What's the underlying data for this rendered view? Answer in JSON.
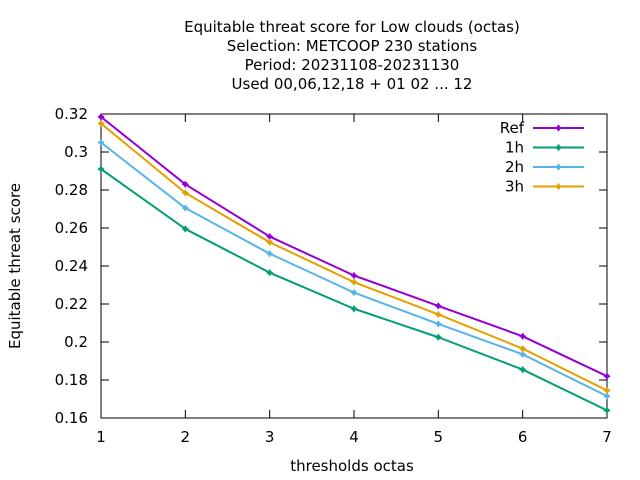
{
  "chart_data": {
    "type": "line",
    "title_lines": [
      "Equitable threat score  for Low clouds (octas)",
      "Selection: METCOOP    230 stations",
      "Period: 20231108-20231130",
      "Used  00,06,12,18 + 01 02 ... 12"
    ],
    "xlabel": "thresholds octas",
    "ylabel": "Equitable threat score",
    "x": [
      1,
      2,
      3,
      4,
      5,
      6,
      7
    ],
    "xlim": [
      1,
      7
    ],
    "ylim": [
      0.16,
      0.32
    ],
    "xticks": [
      "1",
      "2",
      "3",
      "4",
      "5",
      "6",
      "7"
    ],
    "yticks": [
      "0.16",
      "0.18",
      "0.2",
      "0.22",
      "0.24",
      "0.26",
      "0.28",
      "0.3",
      "0.32"
    ],
    "grid": false,
    "legend_position": "top-right",
    "series": [
      {
        "name": "Ref",
        "color": "#9400d3",
        "values": [
          0.3185,
          0.283,
          0.2555,
          0.235,
          0.219,
          0.203,
          0.182
        ]
      },
      {
        "name": "1h",
        "color": "#009e73",
        "values": [
          0.291,
          0.2595,
          0.2365,
          0.2175,
          0.2025,
          0.1855,
          0.164
        ]
      },
      {
        "name": "2h",
        "color": "#56b4e9",
        "values": [
          0.305,
          0.2705,
          0.2465,
          0.226,
          0.2095,
          0.1935,
          0.1715
        ]
      },
      {
        "name": "3h",
        "color": "#e69f00",
        "values": [
          0.315,
          0.2785,
          0.2525,
          0.2315,
          0.2145,
          0.1965,
          0.1745
        ]
      }
    ]
  }
}
